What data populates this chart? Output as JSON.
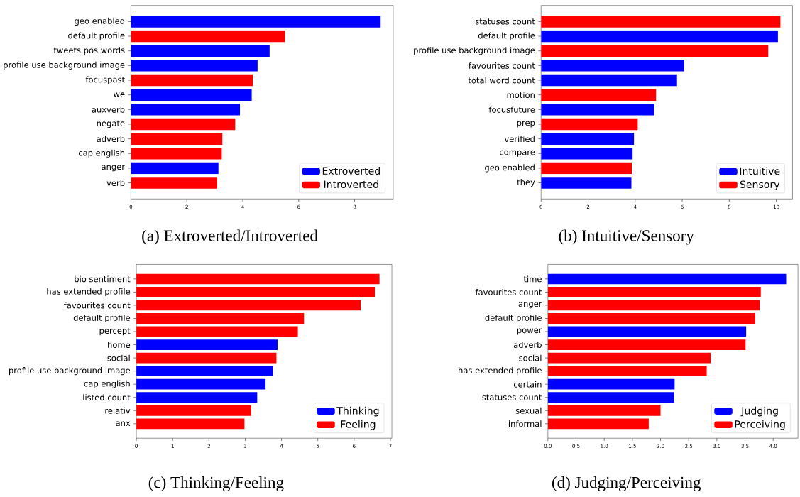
{
  "chart_data": [
    {
      "type": "bar",
      "orientation": "horizontal",
      "title": "(a) Extroverted/Introverted",
      "legend": "bottom right",
      "categories": [
        "geo enabled",
        "default profile",
        "tweets pos words",
        "profile use background image",
        "focuspast",
        "we",
        "auxverb",
        "negate",
        "adverb",
        "cap english",
        "anger",
        "verb"
      ],
      "series": [
        {
          "name": "Extroverted",
          "color": "#0000ff",
          "values": [
            8.93,
            null,
            4.96,
            4.53,
            null,
            4.32,
            3.9,
            null,
            null,
            null,
            3.13,
            null
          ]
        },
        {
          "name": "Introverted",
          "color": "#ff0000",
          "values": [
            null,
            5.51,
            null,
            null,
            4.36,
            null,
            null,
            3.73,
            3.27,
            3.25,
            null,
            3.08
          ]
        }
      ],
      "xlim": [
        0,
        9.38
      ],
      "xticks": [
        0,
        2,
        4,
        6,
        8
      ]
    },
    {
      "type": "bar",
      "orientation": "horizontal",
      "title": "(b) Intuitive/Sensory",
      "legend": "bottom right",
      "categories": [
        "statuses count",
        "default profile",
        "profile use background image",
        "favourites count",
        "total word count",
        "motion",
        "focusfuture",
        "prep",
        "verified",
        "compare",
        "geo enabled",
        "they"
      ],
      "series": [
        {
          "name": "Intuitive",
          "color": "#0000ff",
          "values": [
            null,
            10.07,
            null,
            6.08,
            5.78,
            null,
            4.81,
            null,
            3.95,
            3.89,
            null,
            3.84
          ]
        },
        {
          "name": "Sensory",
          "color": "#ff0000",
          "values": [
            10.18,
            null,
            9.66,
            null,
            null,
            4.89,
            null,
            4.11,
            null,
            null,
            3.86,
            null
          ]
        }
      ],
      "xlim": [
        0,
        10.69
      ],
      "xticks": [
        0,
        2,
        4,
        6,
        8,
        10
      ]
    },
    {
      "type": "bar",
      "orientation": "horizontal",
      "title": "(c) Thinking/Feeling",
      "legend": "bottom right",
      "categories": [
        "bio sentiment",
        "has extended profile",
        "favourites count",
        "default profile",
        "percept",
        "home",
        "social",
        "profile use background image",
        "cap english",
        "listed count",
        "relativ",
        "anx"
      ],
      "series": [
        {
          "name": "Thinking",
          "color": "#0000ff",
          "values": [
            null,
            null,
            null,
            null,
            null,
            3.89,
            null,
            3.76,
            3.56,
            3.33,
            null,
            null
          ]
        },
        {
          "name": "Feeling",
          "color": "#ff0000",
          "values": [
            6.7,
            6.57,
            6.18,
            4.62,
            4.45,
            null,
            3.86,
            null,
            null,
            null,
            3.16,
            2.98
          ]
        }
      ],
      "xlim": [
        0,
        7.04
      ],
      "xticks": [
        0,
        1,
        2,
        3,
        4,
        5,
        6,
        7
      ]
    },
    {
      "type": "bar",
      "orientation": "horizontal",
      "title": "(d) Judging/Perceiving",
      "legend": "bottom right",
      "categories": [
        "time",
        "favourites count",
        "anger",
        "default profile",
        "power",
        "adverb",
        "social",
        "has extended profile",
        "certain",
        "statuses count",
        "sexual",
        "informal"
      ],
      "series": [
        {
          "name": "Judging",
          "color": "#0000ff",
          "values": [
            4.23,
            null,
            null,
            null,
            3.52,
            null,
            null,
            null,
            2.25,
            2.24,
            null,
            null
          ]
        },
        {
          "name": "Perceiving",
          "color": "#ff0000",
          "values": [
            null,
            3.78,
            3.76,
            3.68,
            null,
            3.51,
            2.89,
            2.82,
            null,
            null,
            2.0,
            1.79
          ]
        }
      ],
      "xlim": [
        0,
        4.44
      ],
      "xticks": [
        {
          "value": 0,
          "label": "0.0"
        },
        {
          "value": 0.5,
          "label": "0.5"
        },
        {
          "value": 1,
          "label": "1.0"
        },
        {
          "value": 1.5,
          "label": "1.5"
        },
        {
          "value": 2,
          "label": "2.0"
        },
        {
          "value": 2.5,
          "label": "2.5"
        },
        {
          "value": 3,
          "label": "3.0"
        },
        {
          "value": 3.5,
          "label": "3.5"
        },
        {
          "value": 4,
          "label": "4.0"
        }
      ]
    }
  ]
}
